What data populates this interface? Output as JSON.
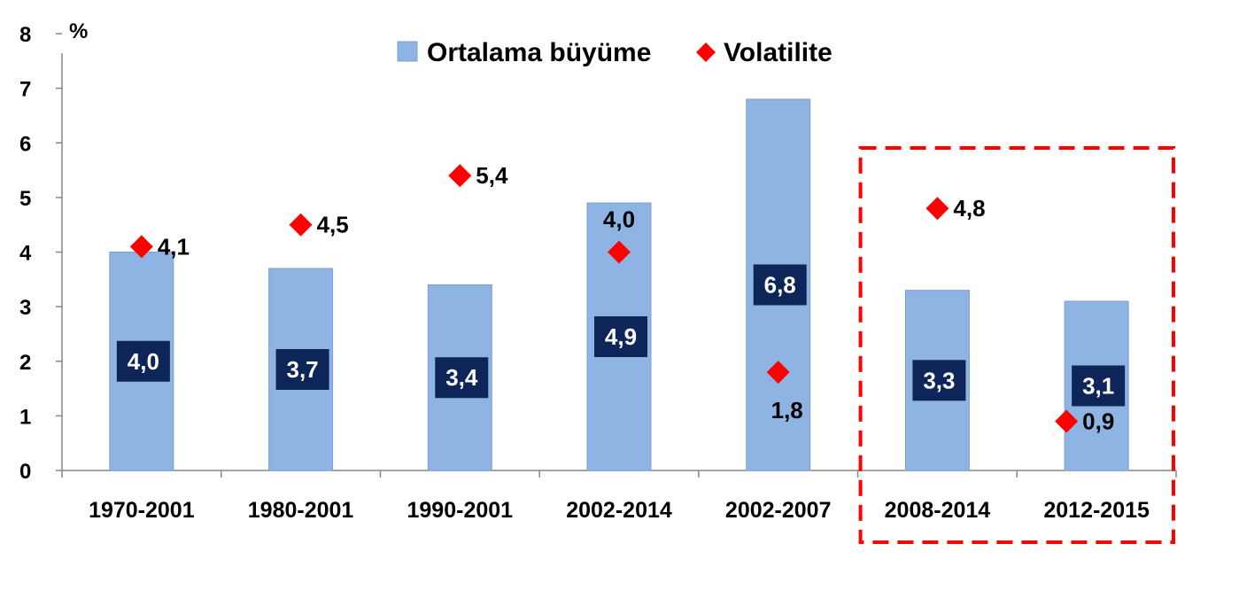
{
  "chart_data": {
    "type": "bar",
    "categories": [
      "1970-2001",
      "1980-2001",
      "1990-2001",
      "2002-2014",
      "2002-2007",
      "2008-2014",
      "2012-2015"
    ],
    "series": [
      {
        "name": "Ortalama büyüme",
        "type": "bar",
        "color": "#8DB4E2",
        "values": [
          4.0,
          3.7,
          3.4,
          4.9,
          6.8,
          3.3,
          3.1
        ],
        "labels": [
          "4,0",
          "3,7",
          "3,4",
          "4,9",
          "6,8",
          "3,3",
          "3,1"
        ]
      },
      {
        "name": "Volatilite",
        "type": "scatter",
        "marker": "diamond",
        "color": "#FF0000",
        "values": [
          4.1,
          4.5,
          5.4,
          4.0,
          1.8,
          4.8,
          0.9
        ],
        "labels": [
          "4,1",
          "4,5",
          "5,4",
          "4,0",
          "1,8",
          "4,8",
          "0,9"
        ]
      }
    ],
    "ylabel": "%",
    "ylim": [
      0,
      8
    ],
    "yticks": [
      "0",
      "1",
      "2",
      "3",
      "4",
      "5",
      "6",
      "7",
      "8"
    ],
    "legend_position": "top",
    "grid": false,
    "bar_label_color": "#0D2559",
    "highlight": {
      "categories": [
        "2008-2014",
        "2012-2015"
      ],
      "style": "dashed",
      "color": "#FF0000"
    }
  }
}
